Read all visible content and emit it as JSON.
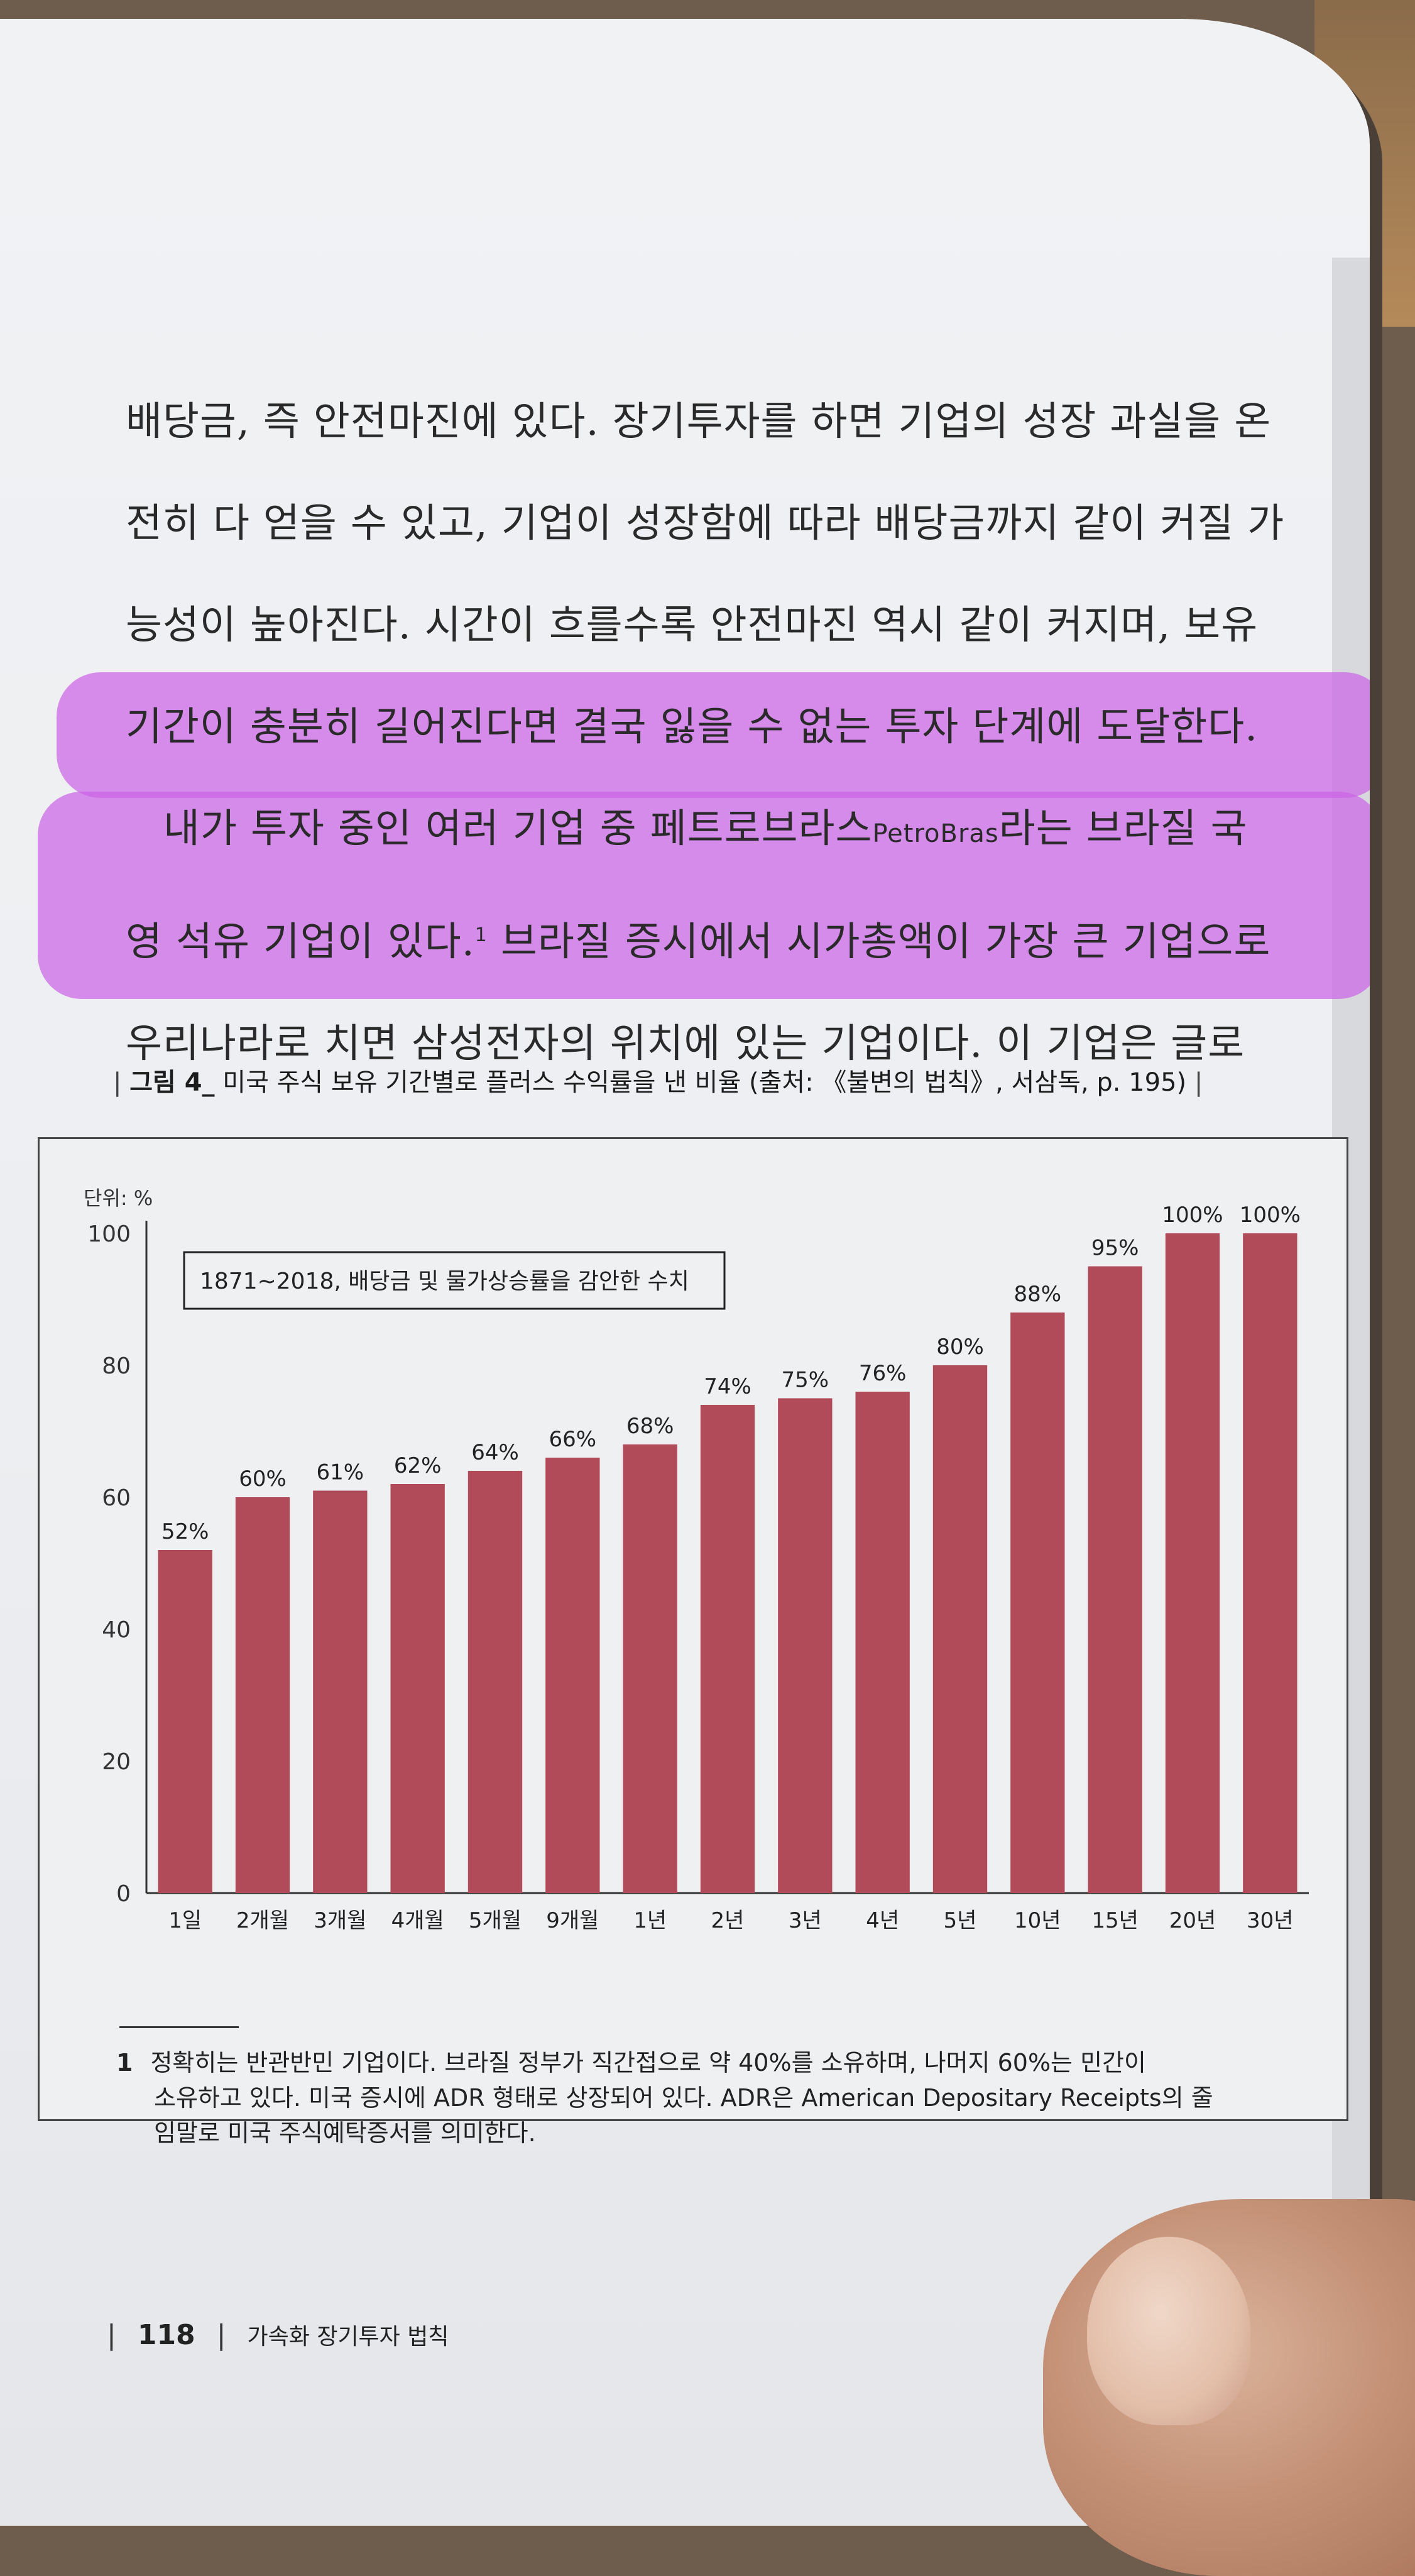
{
  "body": {
    "lines": [
      "배당금, 즉 안전마진에 있다. 장기투자를 하면 기업의 성장 과실을 온",
      "전히 다 얻을 수 있고, 기업이 성장함에 따라 배당금까지 같이 커질 가",
      "능성이 높아진다. 시간이 흐를수록 안전마진 역시 같이 커지며, 보유",
      "기간이 충분히 길어진다면 결국 잃을 수 없는 투자 단계에 도달한다."
    ],
    "para2_line1_a": "내가 투자 중인 여러 기업 중 페트로브라스",
    "para2_line1_latin": "PetroBras",
    "para2_line1_b": "라는 브라질 국",
    "para2_line2_a": "영 석유 기업이 있다.",
    "para2_line2_fn": "1",
    "para2_line2_b": " 브라질 증시에서 시가총액이 가장 큰 기업으로",
    "para2_line3": "우리나라로 치면 삼성전자의 위치에 있는 기업이다. 이 기업은 글로"
  },
  "caption": {
    "label": "그림 4_",
    "text": "미국 주식 보유 기간별로 플러스 수익률을 낸 비율 (출처: 《불변의 법칙》, 서삼독, p. 195)"
  },
  "chart_data": {
    "type": "bar",
    "unit_label": "단위: %",
    "note": "1871~2018, 배당금 및 물가상승률을 감안한 수치",
    "categories": [
      "1일",
      "2개월",
      "3개월",
      "4개월",
      "5개월",
      "9개월",
      "1년",
      "2년",
      "3년",
      "4년",
      "5년",
      "10년",
      "15년",
      "20년",
      "30년"
    ],
    "values": [
      52,
      60,
      61,
      62,
      64,
      66,
      68,
      74,
      75,
      76,
      80,
      88,
      95,
      100,
      100
    ],
    "data_labels": [
      "52%",
      "60%",
      "61%",
      "62%",
      "64%",
      "66%",
      "68%",
      "74%",
      "75%",
      "76%",
      "80%",
      "88%",
      "95%",
      "100%",
      "100%"
    ],
    "yticks": [
      "0",
      "20",
      "40",
      "60",
      "80",
      "100"
    ],
    "ylim": [
      0,
      100
    ],
    "bar_color": "#b14a59"
  },
  "footnote": {
    "number": "1",
    "line1": "정확히는 반관반민 기업이다. 브라질 정부가 직간접으로 약 40%를 소유하며, 나머지 60%는 민간이",
    "line2": "소유하고 있다. 미국 증시에 ADR 형태로 상장되어 있다. ADR은 American Depositary Receipts의 줄",
    "line3": "임말로 미국 주식예탁증서를 의미한다."
  },
  "footer": {
    "page_number": "118",
    "book_title": "가속화 장기투자 법칙"
  }
}
